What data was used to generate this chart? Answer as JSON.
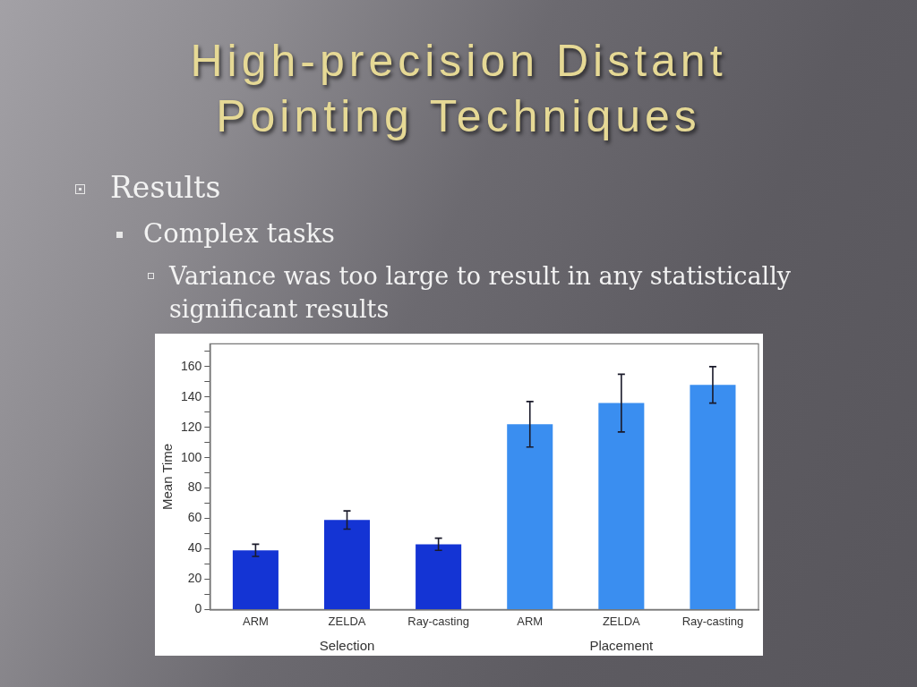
{
  "chart_data": {
    "type": "bar",
    "title": "High-precision Distant Pointing Techniques",
    "annotations": [
      "Results",
      "Complex tasks",
      "Variance was too large to result in any statistically significant results"
    ],
    "categories": [
      "ARM",
      "ZELDA",
      "Ray-casting",
      "ARM",
      "ZELDA",
      "Ray-casting"
    ],
    "series": [
      {
        "name": "Selection",
        "color": "#1434d4",
        "values": [
          39,
          59,
          43,
          null,
          null,
          null
        ],
        "errors": [
          4,
          6,
          4,
          null,
          null,
          null
        ]
      },
      {
        "name": "Placement",
        "color": "#3a8ef0",
        "values": [
          null,
          null,
          null,
          122,
          136,
          148
        ],
        "errors": [
          null,
          null,
          null,
          15,
          19,
          12
        ]
      }
    ],
    "ylabel": "Mean Time",
    "ylim": [
      0,
      175
    ],
    "yticks": [
      0,
      {
        "value": 10,
        "label": null
      },
      20,
      {
        "value": 30,
        "label": null
      },
      40,
      {
        "value": 50,
        "label": null
      },
      60,
      {
        "value": 70,
        "label": null
      },
      80,
      {
        "value": 90,
        "label": null
      },
      100,
      {
        "value": 110,
        "label": null
      },
      120,
      {
        "value": 130,
        "label": null
      },
      140,
      {
        "value": 150,
        "label": null
      },
      160,
      {
        "value": 170,
        "label": null
      }
    ]
  }
}
